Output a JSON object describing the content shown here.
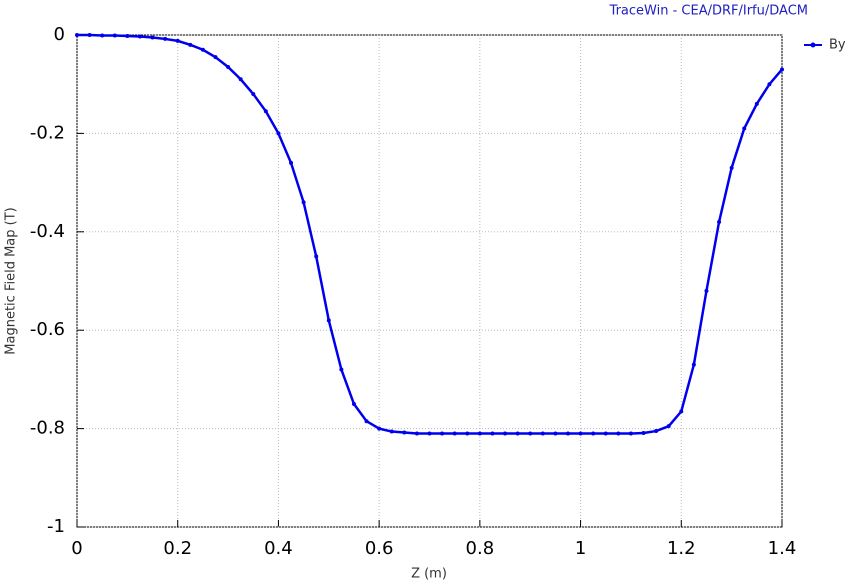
{
  "chart_data": {
    "type": "line",
    "header": "TraceWin - CEA/DRF/Irfu/DACM",
    "xlabel": "Z (m)",
    "ylabel": "Magnetic Field Map (T)",
    "x": [
      0,
      0.025,
      0.05,
      0.075,
      0.1,
      0.125,
      0.15,
      0.175,
      0.2,
      0.225,
      0.25,
      0.275,
      0.3,
      0.325,
      0.35,
      0.375,
      0.4,
      0.425,
      0.45,
      0.475,
      0.5,
      0.525,
      0.55,
      0.575,
      0.6,
      0.625,
      0.65,
      0.675,
      0.7,
      0.725,
      0.75,
      0.775,
      0.8,
      0.825,
      0.85,
      0.875,
      0.9,
      0.925,
      0.95,
      0.975,
      1,
      1.025,
      1.05,
      1.075,
      1.1,
      1.125,
      1.15,
      1.175,
      1.2,
      1.225,
      1.25,
      1.275,
      1.3,
      1.325,
      1.35,
      1.375,
      1.4
    ],
    "series": [
      {
        "name": "By",
        "color": "#0000ee",
        "values": [
          0,
          0,
          -0.001,
          -0.001,
          -0.002,
          -0.003,
          -0.005,
          -0.008,
          -0.012,
          -0.02,
          -0.03,
          -0.045,
          -0.065,
          -0.09,
          -0.12,
          -0.155,
          -0.2,
          -0.26,
          -0.34,
          -0.45,
          -0.58,
          -0.68,
          -0.75,
          -0.785,
          -0.8,
          -0.806,
          -0.808,
          -0.81,
          -0.81,
          -0.81,
          -0.81,
          -0.81,
          -0.81,
          -0.81,
          -0.81,
          -0.81,
          -0.81,
          -0.81,
          -0.81,
          -0.81,
          -0.81,
          -0.81,
          -0.81,
          -0.81,
          -0.81,
          -0.809,
          -0.805,
          -0.795,
          -0.765,
          -0.67,
          -0.52,
          -0.38,
          -0.27,
          -0.19,
          -0.14,
          -0.1,
          -0.07
        ]
      }
    ],
    "xlim": [
      0,
      1.4
    ],
    "xticks": [
      0,
      0.2,
      0.4,
      0.6,
      0.8,
      1,
      1.2,
      1.4
    ],
    "ylim": [
      -1,
      0
    ],
    "yticks": [
      0,
      -0.2,
      -0.4,
      -0.6,
      -0.8,
      -1
    ],
    "grid": true
  }
}
